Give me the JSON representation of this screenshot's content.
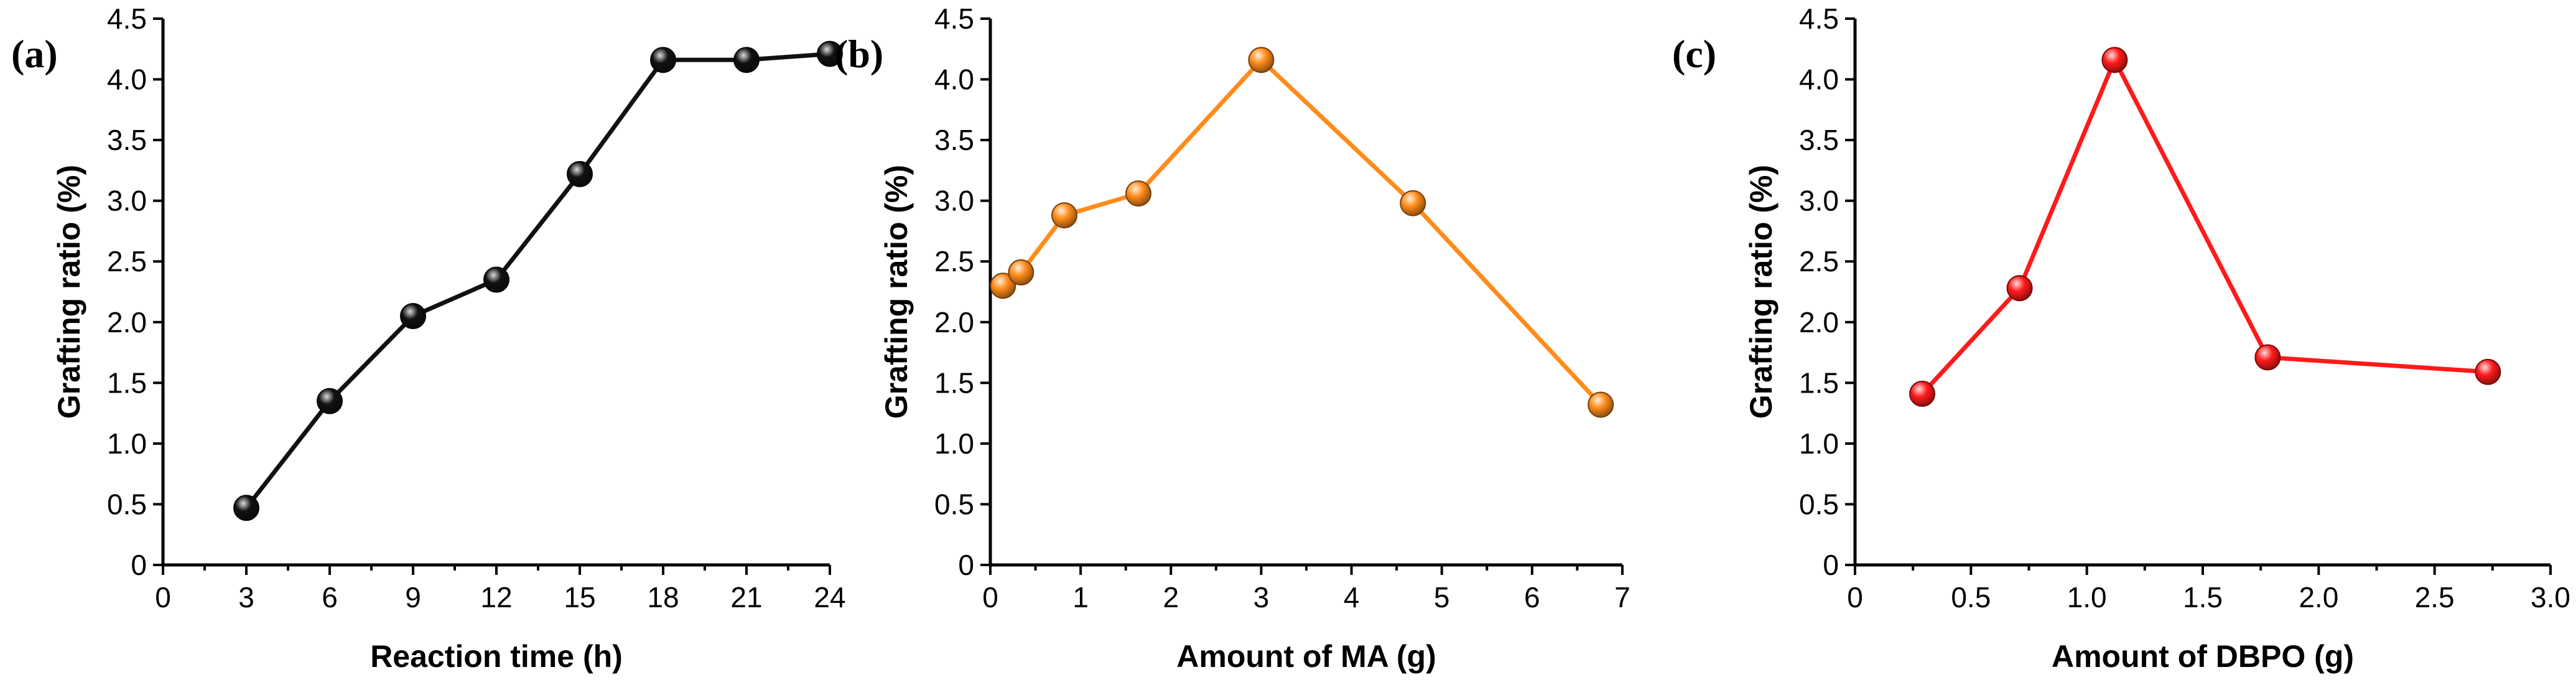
{
  "chart_data": [
    {
      "type": "line",
      "panel_label": "(a)",
      "xlabel": "Reaction time (h)",
      "ylabel": "Grafting ratio (%)",
      "xlim": [
        0,
        24
      ],
      "ylim": [
        0,
        4.5
      ],
      "xticks": [
        "0",
        "3",
        "6",
        "9",
        "12",
        "15",
        "18",
        "21",
        "24"
      ],
      "yticks": [
        "0",
        "0.5",
        "1.0",
        "1.5",
        "2.0",
        "2.5",
        "3.0",
        "3.5",
        "4.0",
        "4.5"
      ],
      "color": "#111111",
      "series": [
        {
          "name": "Grafting ratio",
          "x": [
            3,
            6,
            9,
            12,
            15,
            18,
            21,
            24
          ],
          "y": [
            0.47,
            1.35,
            2.05,
            2.35,
            3.22,
            4.16,
            4.16,
            4.21
          ]
        }
      ]
    },
    {
      "type": "line",
      "panel_label": "(b)",
      "xlabel": "Amount of MA (g)",
      "ylabel": "Grafting ratio (%)",
      "xlim": [
        0,
        7
      ],
      "ylim": [
        0,
        4.5
      ],
      "xticks": [
        "0",
        "1",
        "2",
        "3",
        "4",
        "5",
        "6",
        "7"
      ],
      "yticks": [
        "0",
        "0.5",
        "1.0",
        "1.5",
        "2.0",
        "2.5",
        "3.0",
        "3.5",
        "4.0",
        "4.5"
      ],
      "color": "#ff8c1a",
      "series": [
        {
          "name": "Grafting ratio",
          "x": [
            0.14,
            0.34,
            0.82,
            1.64,
            3.0,
            4.68,
            6.76
          ],
          "y": [
            2.3,
            2.41,
            2.88,
            3.06,
            4.16,
            2.98,
            1.32
          ]
        }
      ]
    },
    {
      "type": "line",
      "panel_label": "(c)",
      "xlabel": "Amount of DBPO (g)",
      "ylabel": "Grafting ratio (%)",
      "xlim": [
        0,
        3.0
      ],
      "ylim": [
        0,
        4.5
      ],
      "xticks": [
        "0",
        "0.5",
        "1.0",
        "1.5",
        "2.0",
        "2.5",
        "3.0"
      ],
      "yticks": [
        "0",
        "0.5",
        "1.0",
        "1.5",
        "2.0",
        "2.5",
        "3.0",
        "3.5",
        "4.0",
        "4.5"
      ],
      "color": "#ff1a1a",
      "series": [
        {
          "name": "Grafting ratio",
          "x": [
            0.29,
            0.71,
            1.12,
            1.78,
            2.73
          ],
          "y": [
            1.41,
            2.28,
            4.16,
            1.71,
            1.59
          ]
        }
      ]
    }
  ]
}
